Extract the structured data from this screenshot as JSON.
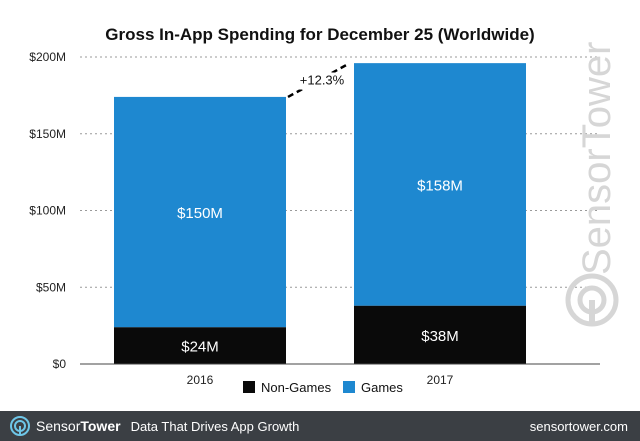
{
  "chart_data": {
    "type": "bar",
    "stacked": true,
    "title": "Gross In-App Spending for December 25 (Worldwide)",
    "categories": [
      "2016",
      "2017"
    ],
    "series": [
      {
        "name": "Non-Games",
        "values": [
          24,
          38
        ],
        "labels": [
          "$24M",
          "$38M"
        ],
        "color": "#0a0a0a",
        "label_color": "#ffffff"
      },
      {
        "name": "Games",
        "values": [
          150,
          158
        ],
        "labels": [
          "$150M",
          "$158M"
        ],
        "color": "#1e88d0",
        "label_color": "#ffffff"
      }
    ],
    "y_ticks": [
      0,
      50,
      100,
      150,
      200
    ],
    "y_tick_labels": [
      "$0",
      "$50M",
      "$100M",
      "$150M",
      "$200M"
    ],
    "ylim": [
      0,
      200
    ],
    "grid": true,
    "legend_position": "bottom",
    "annotation": {
      "text": "+12.3%"
    },
    "watermark": "SensorTower"
  },
  "footer": {
    "brand_light": "Sensor",
    "brand_bold": "Tower",
    "tagline": "Data That Drives App Growth",
    "url": "sensortower.com",
    "background": "#3b3f44"
  }
}
